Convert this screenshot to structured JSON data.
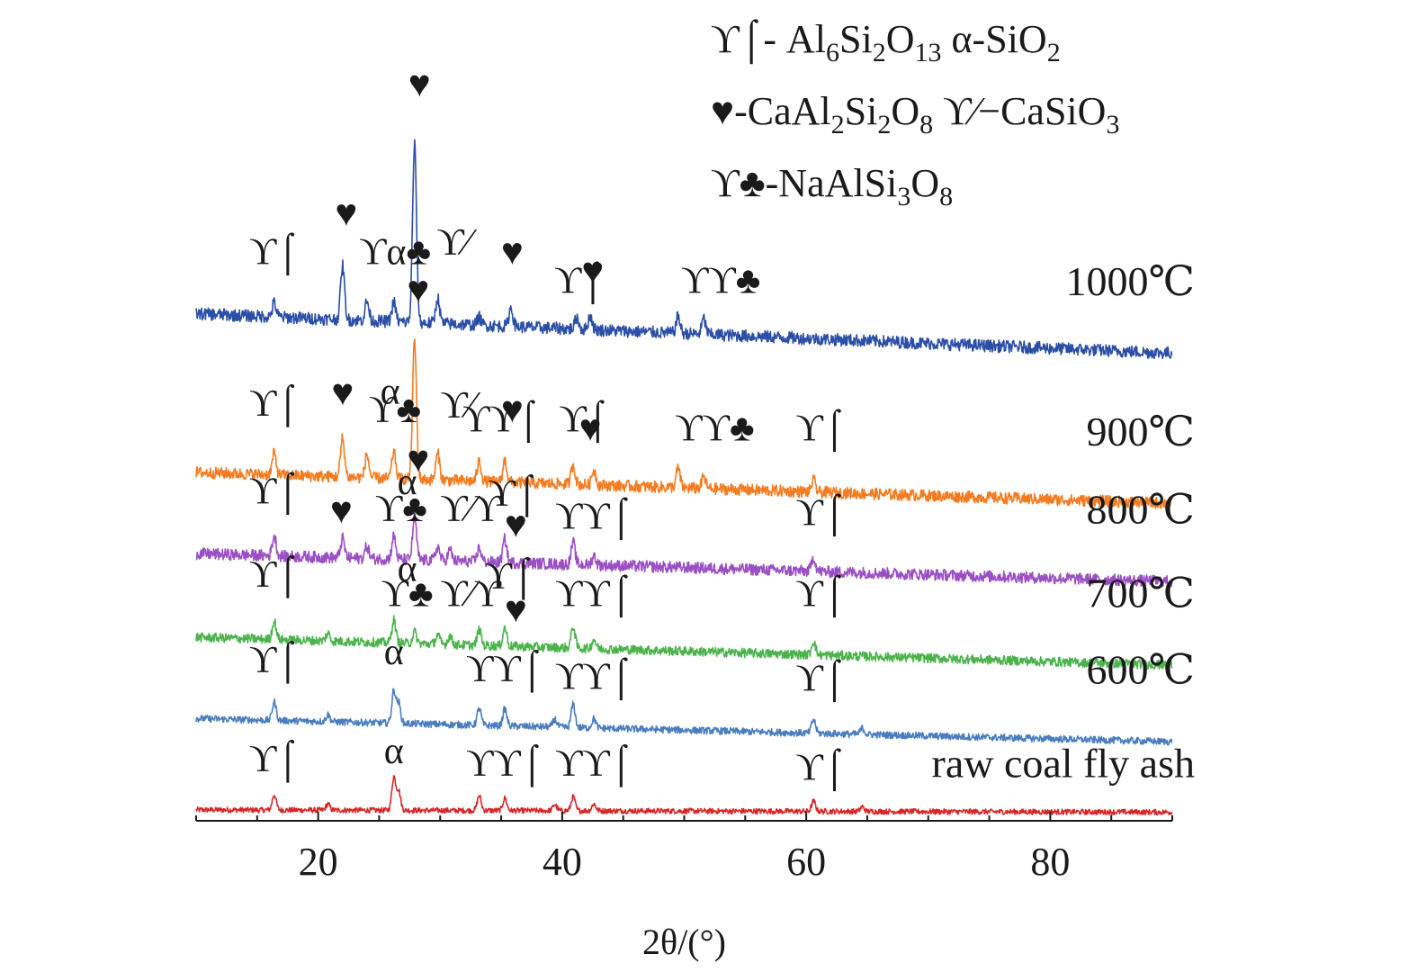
{
  "chart_data": {
    "type": "line",
    "xlabel": "2θ/(°)",
    "ylabel": "",
    "xlim": [
      10,
      90
    ],
    "xticks": [
      20,
      40,
      60,
      80
    ],
    "grid": false,
    "legend": {
      "placement": "top-right",
      "lines": [
        {
          "parts": [
            {
              "t": "ϒ⌠- Al"
            },
            {
              "t": "6",
              "sub": true
            },
            {
              "t": "Si"
            },
            {
              "t": "2",
              "sub": true
            },
            {
              "t": "O"
            },
            {
              "t": "13",
              "sub": true
            },
            {
              "t": " α-SiO"
            },
            {
              "t": "2",
              "sub": true
            }
          ]
        },
        {
          "parts": [
            {
              "t": "♥-CaAl"
            },
            {
              "t": "2",
              "sub": true
            },
            {
              "t": "Si"
            },
            {
              "t": "2",
              "sub": true
            },
            {
              "t": "O"
            },
            {
              "t": "8",
              "sub": true
            },
            {
              "t": " ϒ⁄−CaSiO"
            },
            {
              "t": "3",
              "sub": true
            }
          ]
        },
        {
          "parts": [
            {
              "t": "ϒ♣-NaAlSi"
            },
            {
              "t": "3",
              "sub": true
            },
            {
              "t": "O"
            },
            {
              "t": "8",
              "sub": true
            }
          ]
        }
      ]
    },
    "series": [
      {
        "name": "raw coal fly ash",
        "color": "#d62728",
        "baseline": 0.6,
        "slope": -0.3,
        "noise": 0.35,
        "peaks": [
          [
            16.4,
            2.0
          ],
          [
            20.8,
            0.8
          ],
          [
            26.2,
            4.3
          ],
          [
            26.6,
            2.5
          ],
          [
            33.2,
            1.9
          ],
          [
            35.3,
            1.6
          ],
          [
            39.4,
            0.8
          ],
          [
            40.9,
            1.8
          ],
          [
            42.6,
            0.9
          ],
          [
            60.6,
            1.3
          ],
          [
            64.6,
            0.6
          ]
        ],
        "markers": [
          {
            "x": 16.4,
            "y": 5.6,
            "text": "ϒ⌠"
          },
          {
            "x": 26.2,
            "y": 6.6,
            "text": "α"
          },
          {
            "x": 35.3,
            "y": 5.0,
            "text": "ϒϒ⌠"
          },
          {
            "x": 42.6,
            "y": 5.0,
            "text": "ϒϒ⌠"
          },
          {
            "x": 61.2,
            "y": 4.5,
            "text": "ϒ⌠"
          }
        ]
      },
      {
        "name": "600℃",
        "color": "#4a7dbf",
        "baseline": 12.4,
        "slope": -3.0,
        "noise": 0.45,
        "peaks": [
          [
            16.4,
            2.4
          ],
          [
            20.8,
            0.9
          ],
          [
            26.2,
            4.2
          ],
          [
            26.6,
            2.6
          ],
          [
            33.2,
            2.2
          ],
          [
            35.3,
            2.2
          ],
          [
            39.4,
            1.0
          ],
          [
            40.9,
            3.0
          ],
          [
            42.6,
            1.2
          ],
          [
            60.6,
            1.8
          ],
          [
            64.6,
            0.8
          ]
        ],
        "markers": [
          {
            "x": 16.4,
            "y": 18.4,
            "text": "ϒ⌠"
          },
          {
            "x": 26.2,
            "y": 19.4,
            "text": "α"
          },
          {
            "x": 35.3,
            "y": 17.2,
            "text": "ϒϒ⌠"
          },
          {
            "x": 42.6,
            "y": 16.2,
            "text": "ϒϒ⌠"
          },
          {
            "x": 61.2,
            "y": 16.0,
            "text": "ϒ⌠"
          }
        ]
      },
      {
        "name": "700℃",
        "color": "#4bb34b",
        "baseline": 22.9,
        "slope": -3.6,
        "noise": 0.6,
        "peaks": [
          [
            16.4,
            2.4
          ],
          [
            20.8,
            1.0
          ],
          [
            26.2,
            3.0
          ],
          [
            27.9,
            1.5
          ],
          [
            29.8,
            1.2
          ],
          [
            30.8,
            1.1
          ],
          [
            33.2,
            2.0
          ],
          [
            35.3,
            2.4
          ],
          [
            40.9,
            2.8
          ],
          [
            42.6,
            1.2
          ],
          [
            60.6,
            1.8
          ]
        ],
        "markers": [
          {
            "x": 16.4,
            "y": 29.4,
            "text": "ϒ⌠"
          },
          {
            "x": 27.3,
            "y": 30.2,
            "text": "α"
          },
          {
            "x": 27.3,
            "y": 26.9,
            "text": "ϒ♣"
          },
          {
            "x": 32.5,
            "y": 26.9,
            "text": "ϒ⁄ϒ"
          },
          {
            "x": 35.7,
            "y": 29.2,
            "text": "ϒ⌠"
          },
          {
            "x": 36.2,
            "y": 24.9,
            "text": "♥"
          },
          {
            "x": 42.6,
            "y": 26.9,
            "text": "ϒϒ⌠"
          },
          {
            "x": 61.2,
            "y": 26.9,
            "text": "ϒ⌠"
          }
        ]
      },
      {
        "name": "800℃",
        "color": "#9b4fc4",
        "baseline": 33.7,
        "slope": -3.6,
        "noise": 0.75,
        "peaks": [
          [
            16.4,
            2.6
          ],
          [
            22.0,
            2.5
          ],
          [
            24.0,
            1.6
          ],
          [
            26.2,
            3.0
          ],
          [
            27.9,
            5.5
          ],
          [
            29.8,
            1.8
          ],
          [
            30.8,
            1.4
          ],
          [
            33.2,
            1.8
          ],
          [
            35.3,
            3.0
          ],
          [
            40.9,
            2.8
          ],
          [
            42.6,
            1.2
          ],
          [
            60.6,
            1.8
          ]
        ],
        "markers": [
          {
            "x": 16.4,
            "y": 40.2,
            "text": "ϒ⌠"
          },
          {
            "x": 21.9,
            "y": 37.7,
            "text": "♥"
          },
          {
            "x": 27.3,
            "y": 41.4,
            "text": "α"
          },
          {
            "x": 28.2,
            "y": 44.3,
            "text": "♥"
          },
          {
            "x": 26.8,
            "y": 37.9,
            "text": "ϒ♣"
          },
          {
            "x": 32.5,
            "y": 37.9,
            "text": "ϒ⁄ϒ"
          },
          {
            "x": 36.0,
            "y": 39.9,
            "text": "ϒ⌠"
          },
          {
            "x": 36.2,
            "y": 35.9,
            "text": "♥"
          },
          {
            "x": 42.6,
            "y": 36.9,
            "text": "ϒϒ⌠"
          },
          {
            "x": 61.2,
            "y": 37.4,
            "text": "ϒ⌠"
          }
        ]
      },
      {
        "name": "900℃",
        "color": "#f47b20",
        "baseline": 44.2,
        "slope": -4.0,
        "noise": 0.75,
        "peaks": [
          [
            16.4,
            2.8
          ],
          [
            22.0,
            5.0
          ],
          [
            24.0,
            3.0
          ],
          [
            26.2,
            3.5
          ],
          [
            27.9,
            18.0
          ],
          [
            29.8,
            3.4
          ],
          [
            33.2,
            2.6
          ],
          [
            35.3,
            2.8
          ],
          [
            40.9,
            2.6
          ],
          [
            42.6,
            2.0
          ],
          [
            49.5,
            2.5
          ],
          [
            51.6,
            1.5
          ],
          [
            60.6,
            1.5
          ]
        ],
        "markers": [
          {
            "x": 16.4,
            "y": 51.5,
            "text": "ϒ⌠"
          },
          {
            "x": 22.0,
            "y": 52.9,
            "text": "♥"
          },
          {
            "x": 25.9,
            "y": 53.1,
            "text": "α"
          },
          {
            "x": 26.3,
            "y": 50.7,
            "text": "ϒ♣"
          },
          {
            "x": 28.2,
            "y": 66.2,
            "text": "♥"
          },
          {
            "x": 31.4,
            "y": 51.3,
            "text": "ϒ⁄"
          },
          {
            "x": 35.0,
            "y": 49.5,
            "text": "ϒϒ⌠"
          },
          {
            "x": 35.9,
            "y": 50.7,
            "text": "♥"
          },
          {
            "x": 41.8,
            "y": 49.5,
            "text": "ϒ⌠"
          },
          {
            "x": 42.3,
            "y": 48.3,
            "text": "♥"
          },
          {
            "x": 52.5,
            "y": 48.3,
            "text": "ϒϒ♣"
          },
          {
            "x": 61.2,
            "y": 48.3,
            "text": "ϒ⌠"
          }
        ]
      },
      {
        "name": "1000℃",
        "color": "#2b4ea6",
        "baseline": 64.7,
        "slope": -5.1,
        "noise": 0.8,
        "peaks": [
          [
            16.4,
            1.8
          ],
          [
            22.0,
            7.0
          ],
          [
            24.0,
            2.5
          ],
          [
            26.2,
            2.5
          ],
          [
            27.9,
            23.0
          ],
          [
            29.8,
            3.3
          ],
          [
            33.2,
            1.0
          ],
          [
            35.8,
            2.4
          ],
          [
            41.2,
            1.5
          ],
          [
            42.3,
            1.8
          ],
          [
            49.5,
            2.2
          ],
          [
            51.6,
            2.0
          ]
        ],
        "markers": [
          {
            "x": 16.4,
            "y": 71.1,
            "text": "ϒ⌠"
          },
          {
            "x": 22.3,
            "y": 76.1,
            "text": "♥"
          },
          {
            "x": 26.3,
            "y": 71.1,
            "text": "ϒα♣"
          },
          {
            "x": 28.3,
            "y": 92.8,
            "text": "♥"
          },
          {
            "x": 31.1,
            "y": 72.3,
            "text": "ϒ⁄"
          },
          {
            "x": 35.9,
            "y": 71.1,
            "text": "♥"
          },
          {
            "x": 41.4,
            "y": 67.4,
            "text": "ϒ⌠"
          },
          {
            "x": 42.5,
            "y": 68.6,
            "text": "♥"
          },
          {
            "x": 53.0,
            "y": 67.4,
            "text": "ϒϒ♣"
          }
        ]
      }
    ]
  }
}
